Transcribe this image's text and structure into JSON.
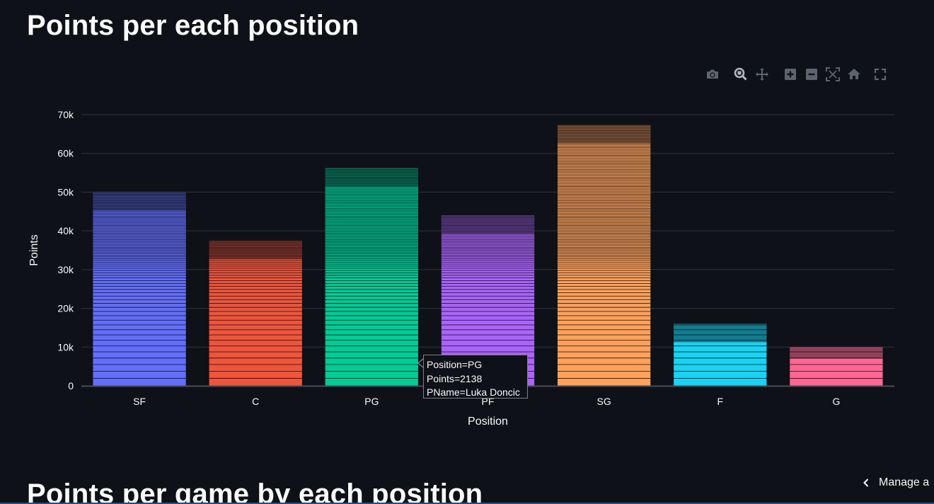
{
  "page": {
    "title": "Points per each position",
    "second_title": "Points per game by each position",
    "manage_label": "Manage a"
  },
  "modebar": {
    "buttons": [
      {
        "icon": "camera-icon",
        "title": "Download plot as a png"
      },
      {
        "icon": "zoom-icon",
        "title": "Zoom"
      },
      {
        "icon": "pan-icon",
        "title": "Pan"
      },
      {
        "icon": "zoom-in-icon",
        "title": "Zoom in"
      },
      {
        "icon": "zoom-out-icon",
        "title": "Zoom out"
      },
      {
        "icon": "autoscale-icon",
        "title": "Autoscale"
      },
      {
        "icon": "reset-axes-icon",
        "title": "Reset axes"
      },
      {
        "icon": "fullscreen-icon",
        "title": "Fullscreen"
      }
    ]
  },
  "tooltip": {
    "line1": "Position=PG",
    "line2": "Points=2138",
    "line3": "PName=Luka Doncic"
  },
  "colors": {
    "background": "#0e1117",
    "grid": "#31333f",
    "axis_text": "#fafafa",
    "series": [
      "#636efa",
      "#ef553b",
      "#00cc96",
      "#ab63fa",
      "#ffa15a",
      "#19d3f3",
      "#ff6692"
    ]
  },
  "chart_data": {
    "type": "bar",
    "stacked": true,
    "categories": [
      "SF",
      "C",
      "PG",
      "PF",
      "SG",
      "F",
      "G"
    ],
    "values": [
      50000,
      37500,
      56300,
      44000,
      67300,
      16000,
      10000
    ],
    "xlabel": "Position",
    "ylabel": "Points",
    "ylim": [
      0,
      70000
    ],
    "yticks": [
      0,
      10000,
      20000,
      30000,
      40000,
      50000,
      60000,
      70000
    ],
    "ytick_labels": [
      "0",
      "10k",
      "20k",
      "30k",
      "40k",
      "50k",
      "60k",
      "70k"
    ],
    "grid": true,
    "legend": "none"
  }
}
